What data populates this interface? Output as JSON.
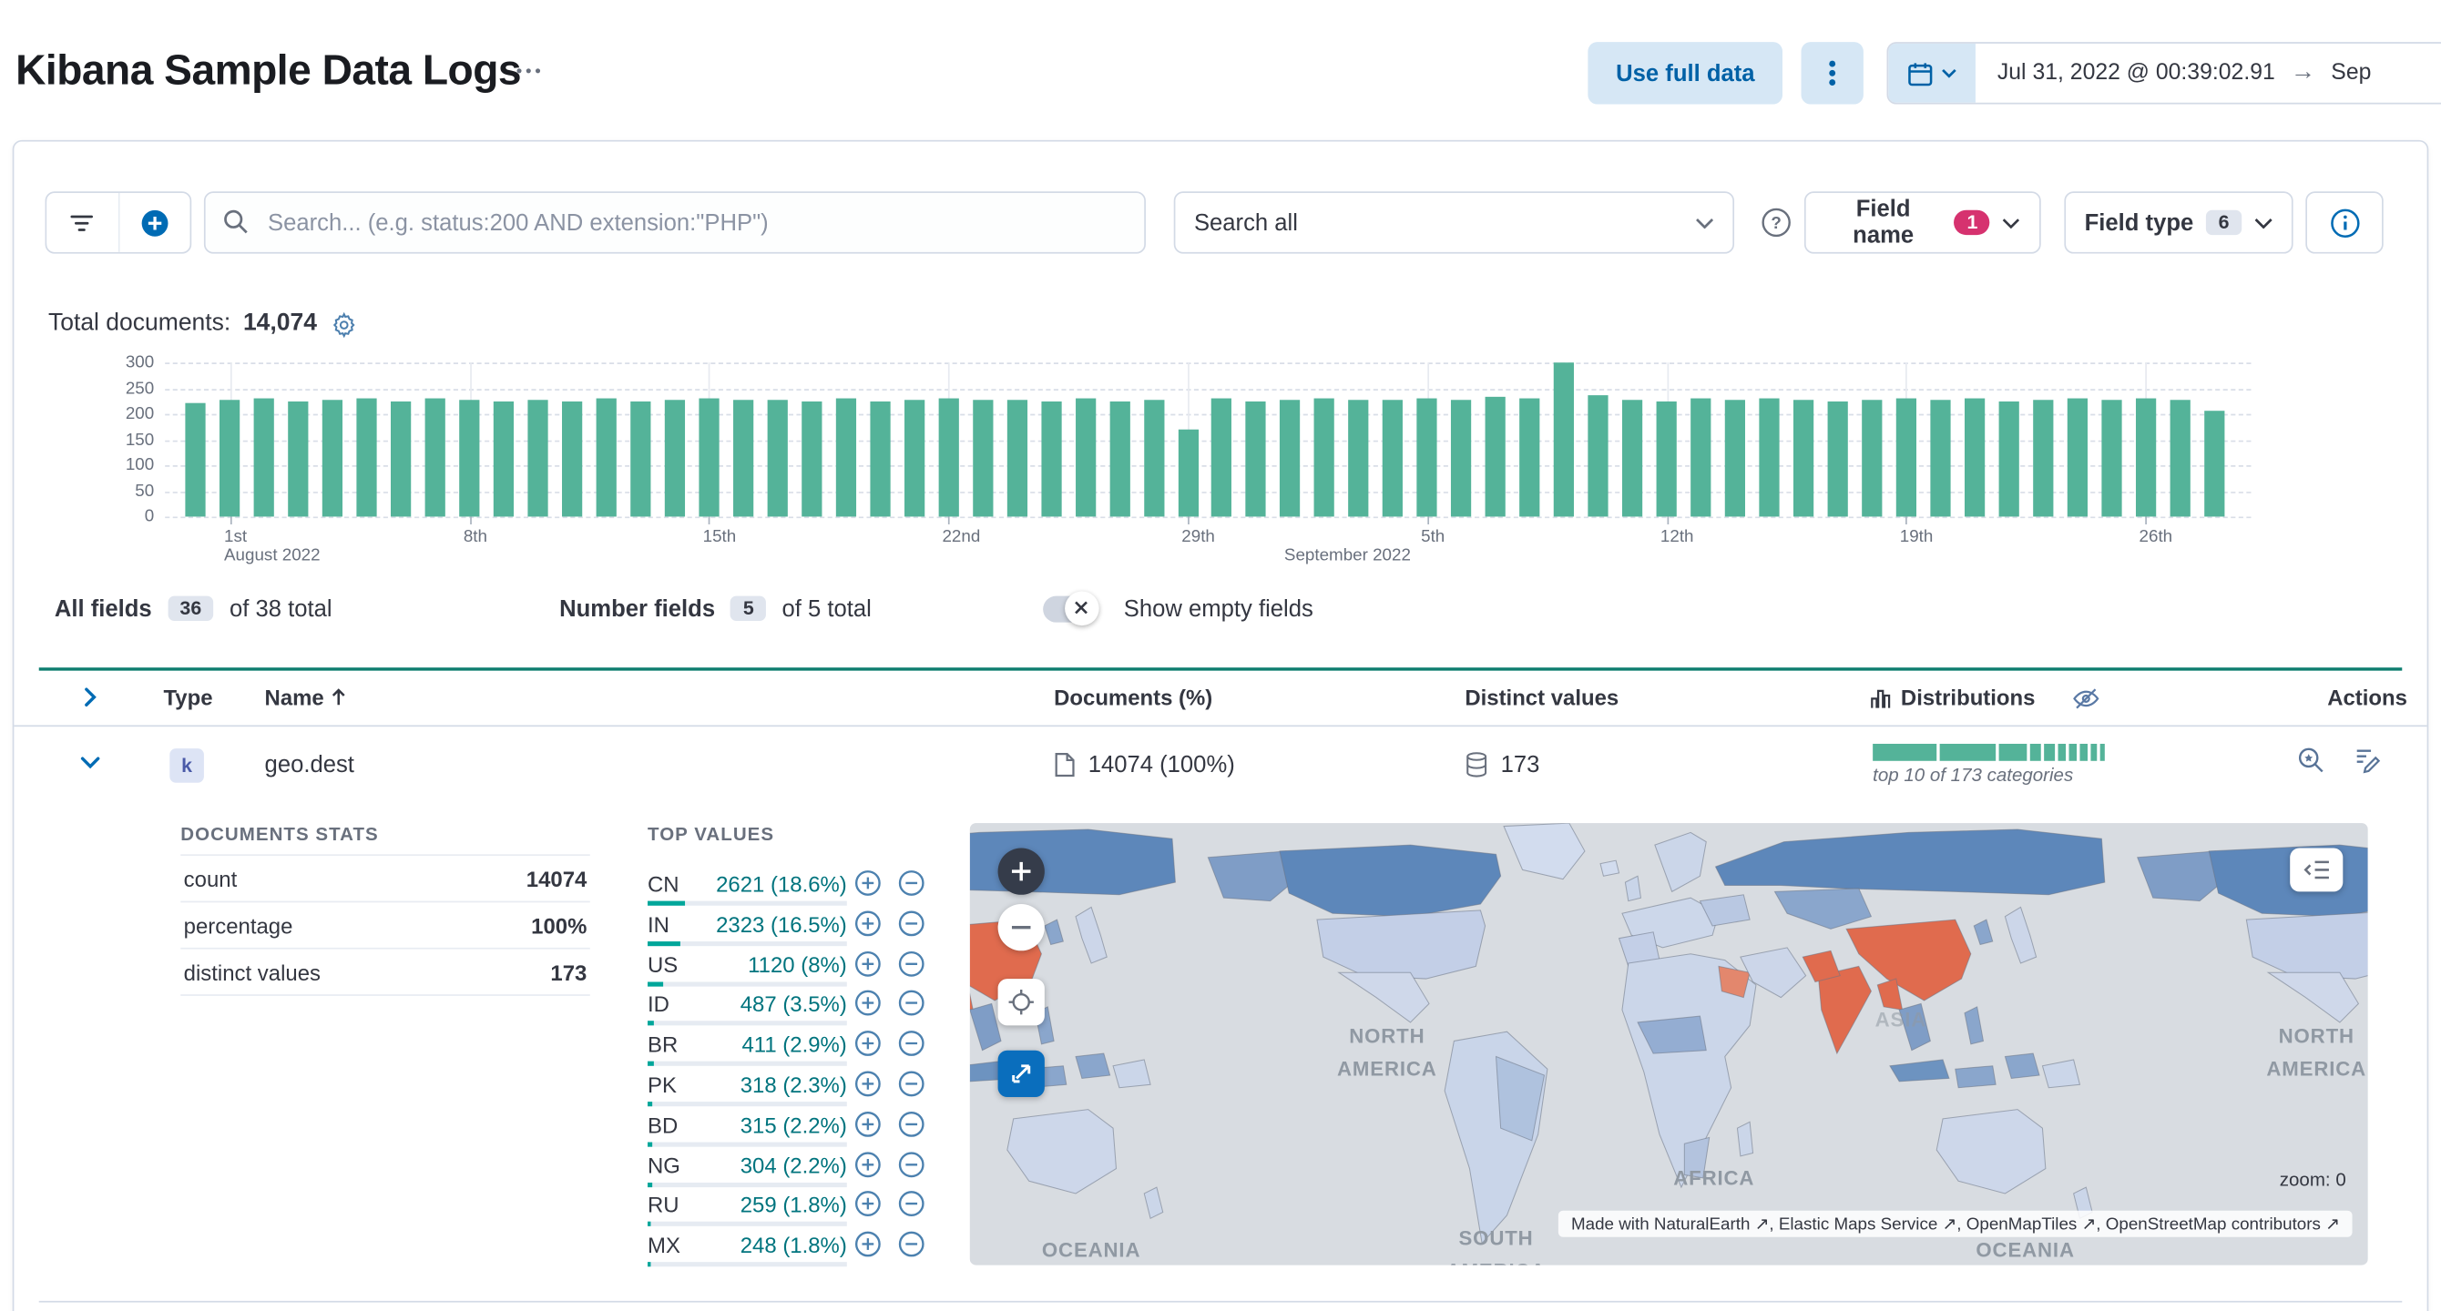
{
  "header": {
    "title": "Kibana Sample Data Logs",
    "use_full_data": "Use full data",
    "date_start": "Jul 31, 2022 @ 00:39:02.91",
    "date_end": "Sep"
  },
  "toolbar": {
    "search_placeholder": "Search... (e.g. status:200 AND extension:\"PHP\")",
    "search_all": "Search all",
    "field_name_label": "Field name",
    "field_name_badge": "1",
    "field_type_label": "Field type",
    "field_type_badge": "6"
  },
  "summary": {
    "total_documents_label": "Total documents:",
    "total_documents_value": "14,074"
  },
  "chart_data": {
    "type": "bar",
    "color": "#54B399",
    "ylim": [
      0,
      300
    ],
    "y_ticks": [
      0,
      50,
      100,
      150,
      200,
      250,
      300
    ],
    "x_ticks": [
      {
        "index": 1,
        "label": "1st"
      },
      {
        "index": 8,
        "label": "8th"
      },
      {
        "index": 15,
        "label": "15th"
      },
      {
        "index": 22,
        "label": "22nd"
      },
      {
        "index": 29,
        "label": "29th"
      },
      {
        "index": 36,
        "label": "5th"
      },
      {
        "index": 43,
        "label": "12th"
      },
      {
        "index": 50,
        "label": "19th"
      },
      {
        "index": 57,
        "label": "26th"
      }
    ],
    "month_labels": [
      {
        "index": 1,
        "label": "August 2022"
      },
      {
        "index": 32,
        "label": "September 2022"
      }
    ],
    "values": [
      222,
      228,
      231,
      224,
      227,
      230,
      225,
      229,
      226,
      223,
      228,
      225,
      230,
      224,
      227,
      231,
      226,
      228,
      224,
      229,
      225,
      227,
      230,
      226,
      228,
      223,
      229,
      225,
      227,
      170,
      229,
      224,
      228,
      231,
      226,
      228,
      230,
      227,
      232,
      229,
      300,
      237,
      228,
      225,
      229,
      226,
      230,
      227,
      224,
      228,
      231,
      226,
      229,
      225,
      228,
      230,
      226,
      229,
      227,
      205
    ]
  },
  "field_filters": {
    "all_fields_label": "All fields",
    "all_fields_count": "36",
    "all_fields_total": "of 38 total",
    "number_fields_label": "Number fields",
    "number_fields_count": "5",
    "number_fields_total": "of 5 total",
    "show_empty_label": "Show empty fields"
  },
  "table": {
    "columns": {
      "type": "Type",
      "name": "Name",
      "documents": "Documents (%)",
      "distinct": "Distinct values",
      "distributions": "Distributions",
      "actions": "Actions"
    },
    "row": {
      "type_letter": "k",
      "name": "geo.dest",
      "documents": "14074 (100%)",
      "distinct": "173",
      "distributions_caption": "top 10 of 173 categories"
    }
  },
  "details": {
    "doc_stats": {
      "heading": "DOCUMENTS STATS",
      "rows": [
        [
          "count",
          "14074"
        ],
        [
          "percentage",
          "100%"
        ],
        [
          "distinct values",
          "173"
        ]
      ]
    },
    "top_values": {
      "heading": "TOP VALUES",
      "items": [
        {
          "key": "CN",
          "display": "2621 (18.6%)",
          "pct": 18.6
        },
        {
          "key": "IN",
          "display": "2323 (16.5%)",
          "pct": 16.5
        },
        {
          "key": "US",
          "display": "1120 (8%)",
          "pct": 8
        },
        {
          "key": "ID",
          "display": "487 (3.5%)",
          "pct": 3.5
        },
        {
          "key": "BR",
          "display": "411 (2.9%)",
          "pct": 2.9
        },
        {
          "key": "PK",
          "display": "318 (2.3%)",
          "pct": 2.3
        },
        {
          "key": "BD",
          "display": "315 (2.2%)",
          "pct": 2.2
        },
        {
          "key": "NG",
          "display": "304 (2.2%)",
          "pct": 2.2
        },
        {
          "key": "RU",
          "display": "259 (1.8%)",
          "pct": 1.8
        },
        {
          "key": "MX",
          "display": "248 (1.8%)",
          "pct": 1.8
        }
      ]
    },
    "map": {
      "labels": {
        "north_america_1": "NORTH AMERICA",
        "north_america_2": "NORTH AMERICA",
        "south_america": "SOUTH AMERICA",
        "africa": "AFRICA",
        "asia": "ASIA",
        "oceania_1": "OCEANIA",
        "oceania_2": "OCEANIA"
      },
      "zoom_text": "zoom: 0",
      "attribution": "Made with NaturalEarth ↗, Elastic Maps Service ↗, OpenMapTiles ↗, OpenStreetMap contributors ↗"
    }
  },
  "colors": {
    "bar_green": "#54B399",
    "badge_pink": "#D6326F",
    "primary_blue": "#006BB4",
    "teal_progress": "#00A69A"
  }
}
